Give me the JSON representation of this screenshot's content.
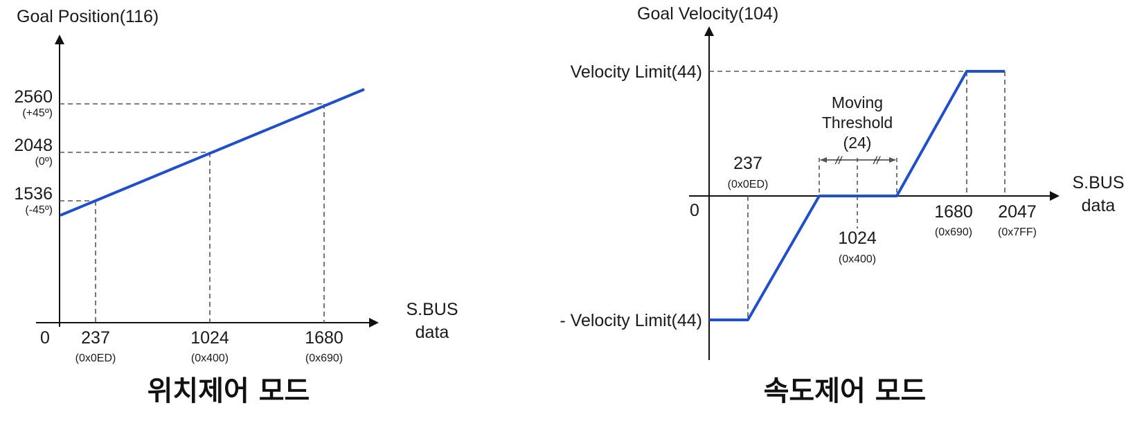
{
  "position_mode": {
    "y_axis_label": "Goal Position(116)",
    "x_axis_label_line1": "S.BUS",
    "x_axis_label_line2": "data",
    "origin": "0",
    "y_ticks": [
      {
        "value": "2560",
        "sub": "(+45º)"
      },
      {
        "value": "2048",
        "sub": "(0º)"
      },
      {
        "value": "1536",
        "sub": "(-45º)"
      }
    ],
    "x_ticks": [
      {
        "value": "237",
        "sub": "(0x0ED)"
      },
      {
        "value": "1024",
        "sub": "(0x400)"
      },
      {
        "value": "1680",
        "sub": "(0x690)"
      }
    ],
    "caption": "위치제어 모드",
    "line_color": "#1f4fc9"
  },
  "velocity_mode": {
    "y_axis_label": "Goal Velocity(104)",
    "x_axis_label_line1": "S.BUS",
    "x_axis_label_line2": "data",
    "origin": "0",
    "upper_limit": "Velocity Limit(44)",
    "lower_limit": "- Velocity Limit(44)",
    "threshold_line1": "Moving",
    "threshold_line2": "Threshold",
    "threshold_line3": "(24)",
    "threshold_mark": "//",
    "x_ticks": [
      {
        "value": "237",
        "sub": "(0x0ED)"
      },
      {
        "value": "1024",
        "sub": "(0x400)"
      },
      {
        "value": "1680",
        "sub": "(0x690)"
      },
      {
        "value": "2047",
        "sub": "(0x7FF)"
      }
    ],
    "caption": "속도제어 모드",
    "line_color": "#1f4fc9"
  }
}
